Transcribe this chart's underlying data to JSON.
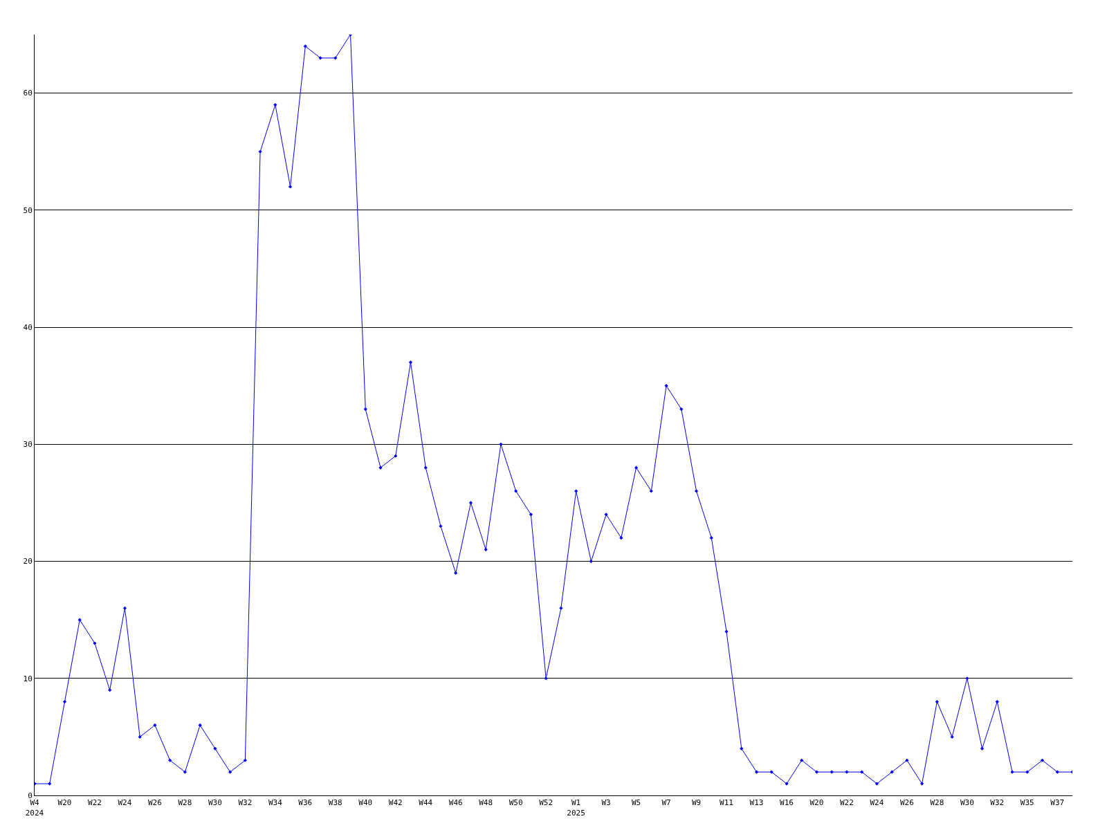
{
  "chart_data": {
    "type": "line",
    "categories": [
      "W4\n2024",
      null,
      "W20",
      null,
      "W22",
      null,
      "W24",
      null,
      "W26",
      null,
      "W28",
      null,
      "W30",
      null,
      "W32",
      null,
      "W34",
      null,
      "W36",
      null,
      "W38",
      null,
      "W40",
      null,
      "W42",
      null,
      "W44",
      null,
      "W46",
      null,
      "W48",
      null,
      "W50",
      null,
      "W52",
      null,
      "W1\n2025",
      null,
      "W3",
      null,
      "W5",
      null,
      "W7",
      null,
      "W9",
      null,
      "W11",
      null,
      "W13",
      null,
      "W16",
      null,
      "W20",
      null,
      "W22",
      null,
      "W24",
      null,
      "W26",
      null,
      "W28",
      null,
      "W30",
      null,
      "W32",
      null,
      "W35",
      null,
      "W37",
      null
    ],
    "series": [
      {
        "color": "#0000ff",
        "values": [
          1,
          1,
          8,
          15,
          13,
          9,
          16,
          5,
          6,
          3,
          2,
          6,
          4,
          2,
          3,
          55,
          59,
          52,
          64,
          63,
          63,
          65,
          33,
          28,
          29,
          37,
          28,
          23,
          19,
          25,
          21,
          30,
          26,
          24,
          10,
          16,
          26,
          20,
          24,
          22,
          28,
          26,
          35,
          33,
          26,
          22,
          14,
          4,
          2,
          2,
          1,
          3,
          2,
          2,
          2,
          2,
          1,
          2,
          3,
          1,
          8,
          5,
          10,
          4,
          8,
          2,
          2,
          3,
          2,
          2
        ]
      }
    ],
    "ylim": [
      0,
      65
    ],
    "yticks": [
      0,
      10,
      20,
      30,
      40,
      50,
      60
    ],
    "grid": "y",
    "marker": "diamond",
    "line_style": "solid"
  }
}
